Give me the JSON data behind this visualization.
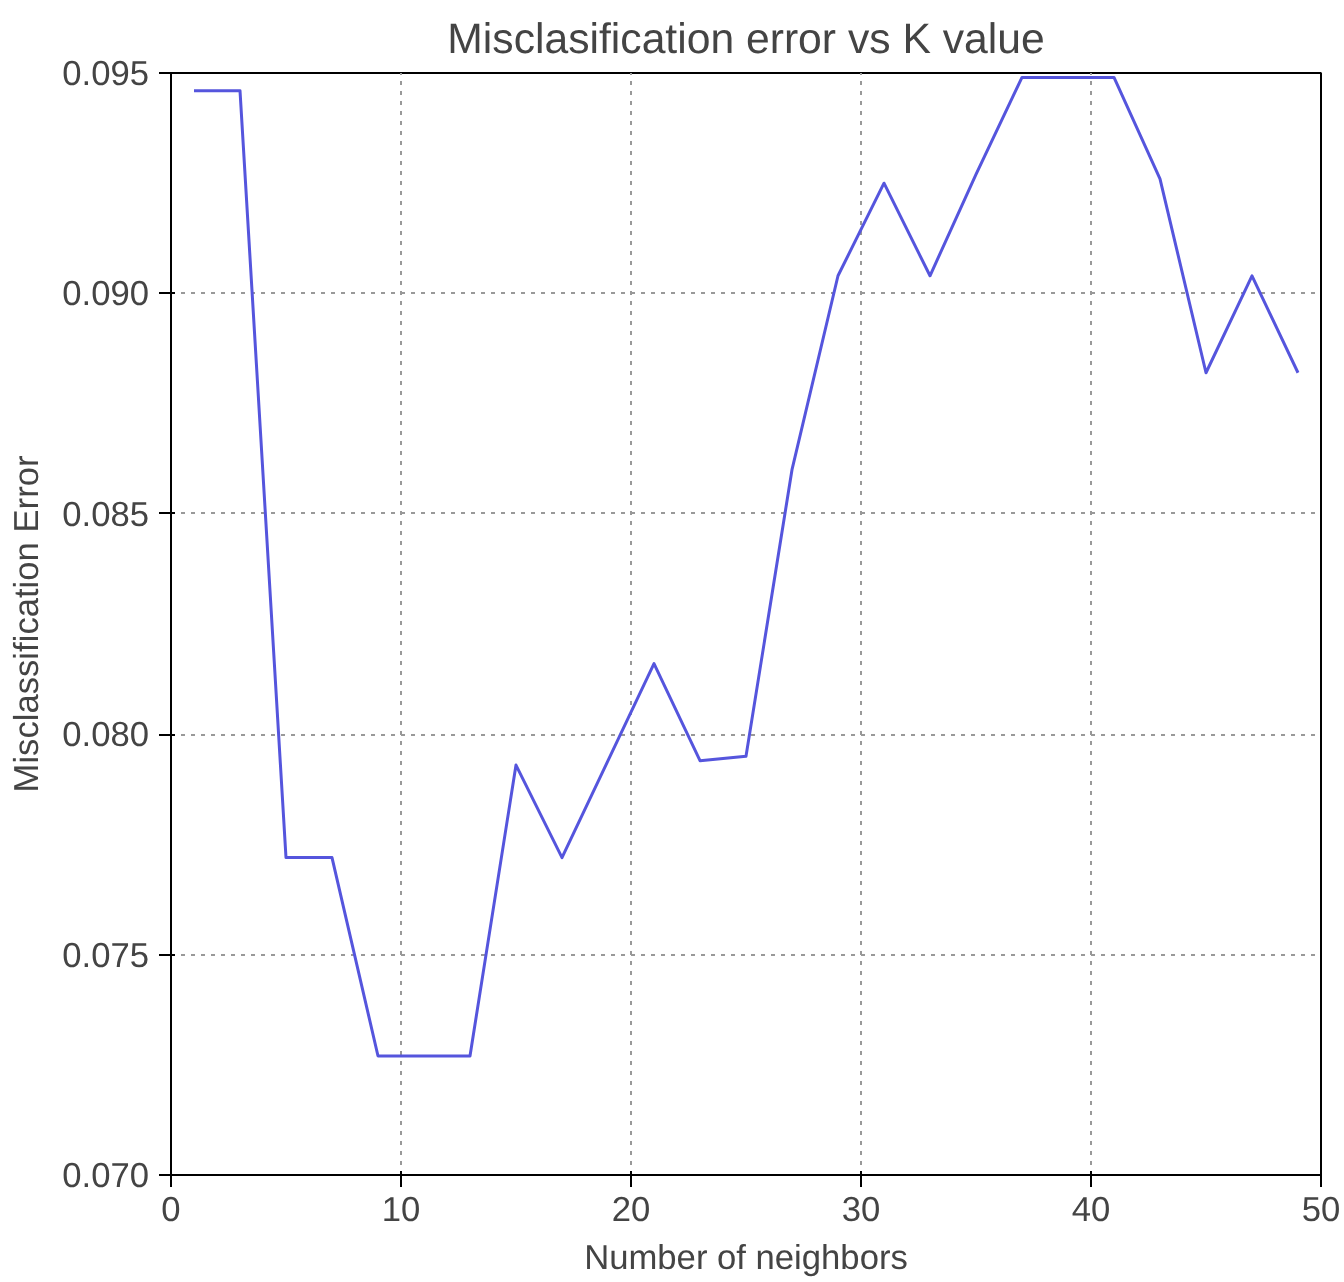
{
  "chart_data": {
    "type": "line",
    "title": "Misclasification error vs K value",
    "xlabel": "Number of neighbors",
    "ylabel": "Misclassification Error",
    "x": [
      1,
      3,
      5,
      7,
      9,
      11,
      13,
      15,
      17,
      19,
      21,
      23,
      25,
      27,
      29,
      31,
      33,
      35,
      37,
      39,
      41,
      43,
      45,
      47,
      49
    ],
    "series": [
      {
        "color": "#5555dd",
        "values": [
          0.0946,
          0.0946,
          0.0772,
          0.0772,
          0.0727,
          0.0727,
          0.0727,
          0.0793,
          0.0772,
          0.0794,
          0.0816,
          0.0794,
          0.0795,
          0.086,
          0.0904,
          0.0925,
          0.0904,
          0.0927,
          0.0949,
          0.0949,
          0.0949,
          0.0926,
          0.0882,
          0.0904,
          0.0882
        ]
      }
    ],
    "xlim": [
      0,
      50
    ],
    "xticks": [
      0,
      10,
      20,
      30,
      40,
      50
    ],
    "ylim": [
      0.07,
      0.095
    ],
    "yticks": [
      {
        "value": 0.07,
        "label": "0.070"
      },
      {
        "value": 0.075,
        "label": "0.075"
      },
      {
        "value": 0.08,
        "label": "0.080"
      },
      {
        "value": 0.085,
        "label": "0.085"
      },
      {
        "value": 0.09,
        "label": "0.090"
      },
      {
        "value": 0.095,
        "label": "0.095"
      }
    ],
    "grid": true
  }
}
